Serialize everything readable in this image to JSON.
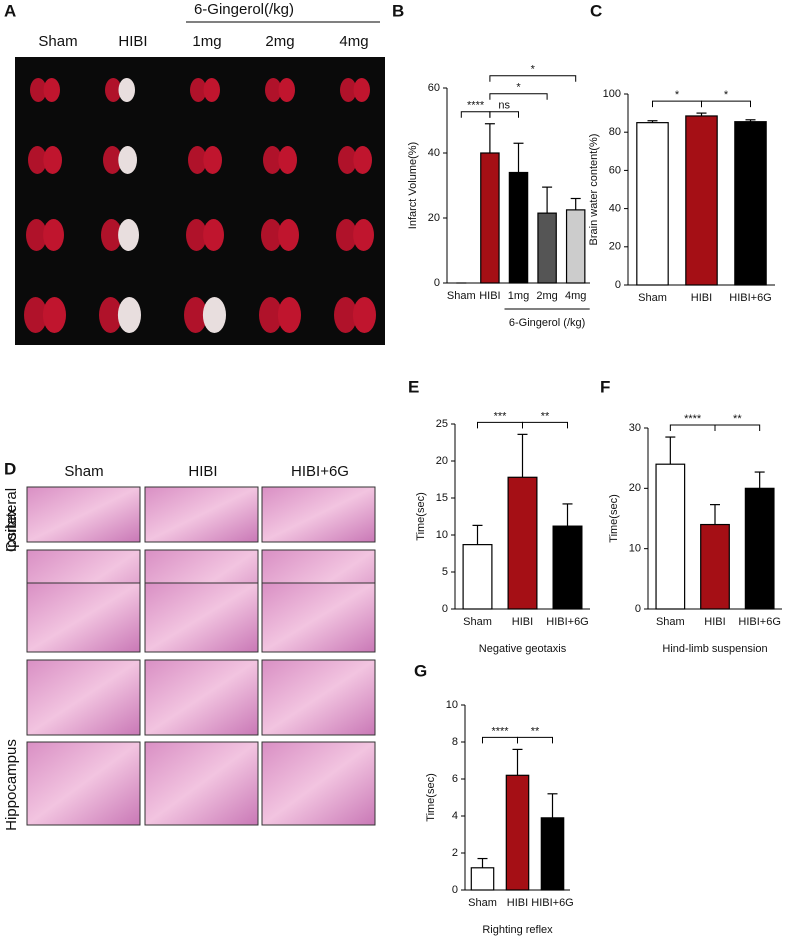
{
  "figure_a": {
    "label": "A",
    "group": "6-Gingerol(/kg)",
    "columns": [
      "Sham",
      "HIBI",
      "1mg",
      "2mg",
      "4mg"
    ]
  },
  "figure_d": {
    "label": "D",
    "columns": [
      "Sham",
      "HIBI",
      "HIBI+6G"
    ],
    "rows": [
      "Ipsilateral",
      "Cortex",
      "Hippocampus"
    ]
  },
  "chart_data": [
    {
      "type": "bar",
      "panel": "B",
      "ylabel": "Infarct Volume(%)",
      "xlabel": "6-Gingerol (/kg)",
      "categories": [
        "Sham",
        "HIBI",
        "1mg",
        "2mg",
        "4mg"
      ],
      "values": [
        0,
        40,
        34,
        21.5,
        22.5
      ],
      "errors": [
        0,
        9,
        9,
        8,
        3.5
      ],
      "colors": [
        "#ffffff",
        "#a50f15",
        "#000000",
        "#555555",
        "#cccccc"
      ],
      "ylim": [
        0,
        60
      ],
      "yticks": [
        0,
        20,
        40,
        60
      ],
      "annotations": [
        {
          "between": [
            "Sham",
            "HIBI"
          ],
          "label": "****"
        },
        {
          "between": [
            "HIBI",
            "1mg"
          ],
          "label": "ns"
        },
        {
          "between": [
            "HIBI",
            "2mg"
          ],
          "label": "*"
        },
        {
          "between": [
            "HIBI",
            "4mg"
          ],
          "label": "*"
        }
      ]
    },
    {
      "type": "bar",
      "panel": "C",
      "ylabel": "Brain water content(%)",
      "categories": [
        "Sham",
        "HIBI",
        "HIBI+6G"
      ],
      "values": [
        85,
        88.5,
        85.5
      ],
      "errors": [
        1,
        1.5,
        1
      ],
      "colors": [
        "#ffffff",
        "#a50f15",
        "#000000"
      ],
      "ylim": [
        0,
        100
      ],
      "yticks": [
        0,
        20,
        40,
        60,
        80,
        100
      ],
      "annotations": [
        {
          "between": [
            "Sham",
            "HIBI"
          ],
          "label": "*"
        },
        {
          "between": [
            "HIBI",
            "HIBI+6G"
          ],
          "label": "*"
        }
      ]
    },
    {
      "type": "bar",
      "panel": "E",
      "ylabel": "Time(sec)",
      "xlabel": "Negative geotaxis",
      "categories": [
        "Sham",
        "HIBI",
        "HIBI+6G"
      ],
      "values": [
        8.7,
        17.8,
        11.2
      ],
      "errors": [
        2.6,
        5.8,
        3
      ],
      "colors": [
        "#ffffff",
        "#a50f15",
        "#000000"
      ],
      "ylim": [
        0,
        25
      ],
      "yticks": [
        0,
        5,
        10,
        15,
        20,
        25
      ],
      "annotations": [
        {
          "between": [
            "Sham",
            "HIBI"
          ],
          "label": "***"
        },
        {
          "between": [
            "HIBI",
            "HIBI+6G"
          ],
          "label": "**"
        }
      ]
    },
    {
      "type": "bar",
      "panel": "F",
      "ylabel": "Time(sec)",
      "xlabel": "Hind-limb suspension",
      "categories": [
        "Sham",
        "HIBI",
        "HIBI+6G"
      ],
      "values": [
        24,
        14,
        20
      ],
      "errors": [
        4.5,
        3.3,
        2.7
      ],
      "colors": [
        "#ffffff",
        "#a50f15",
        "#000000"
      ],
      "ylim": [
        0,
        30
      ],
      "yticks": [
        0,
        10,
        20,
        30
      ],
      "annotations": [
        {
          "between": [
            "Sham",
            "HIBI"
          ],
          "label": "****"
        },
        {
          "between": [
            "HIBI",
            "HIBI+6G"
          ],
          "label": "**"
        }
      ]
    },
    {
      "type": "bar",
      "panel": "G",
      "ylabel": "Time(sec)",
      "xlabel": "Righting reflex",
      "categories": [
        "Sham",
        "HIBI",
        "HIBI+6G"
      ],
      "values": [
        1.2,
        6.2,
        3.9
      ],
      "errors": [
        0.5,
        1.4,
        1.3
      ],
      "colors": [
        "#ffffff",
        "#a50f15",
        "#000000"
      ],
      "ylim": [
        0,
        10
      ],
      "yticks": [
        0,
        2,
        4,
        6,
        8,
        10
      ],
      "annotations": [
        {
          "between": [
            "Sham",
            "HIBI"
          ],
          "label": "****"
        },
        {
          "between": [
            "HIBI",
            "HIBI+6G"
          ],
          "label": "**"
        }
      ]
    }
  ]
}
